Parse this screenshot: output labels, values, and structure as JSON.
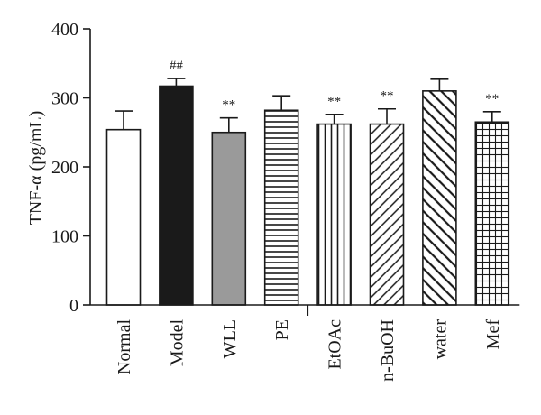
{
  "chart_data": {
    "type": "bar",
    "title": "",
    "xlabel": "",
    "ylabel": "TNF-α (pg/mL)",
    "ylim": [
      0,
      400
    ],
    "yticks": [
      0,
      100,
      200,
      300,
      400
    ],
    "grid": false,
    "categories": [
      "Normal",
      "Model",
      "WLL",
      "PE",
      "EtOAc",
      "n-BuOH",
      "water",
      "Mef"
    ],
    "values": [
      254,
      317,
      250,
      282,
      262,
      262,
      310,
      265
    ],
    "errors": [
      27,
      11,
      21,
      21,
      14,
      22,
      17,
      15
    ],
    "annotations": [
      "",
      "##",
      "**",
      "",
      "**",
      "**",
      "",
      "**"
    ],
    "fills": [
      "white",
      "black",
      "gray",
      "horizontal-lines",
      "vertical-lines",
      "diagonal-lines",
      "diagonal-lines-reverse",
      "grid"
    ],
    "colors": {
      "black": "#1a1a1a",
      "gray": "#9a9a9a",
      "white": "#ffffff",
      "stroke": "#1a1a1a"
    }
  }
}
